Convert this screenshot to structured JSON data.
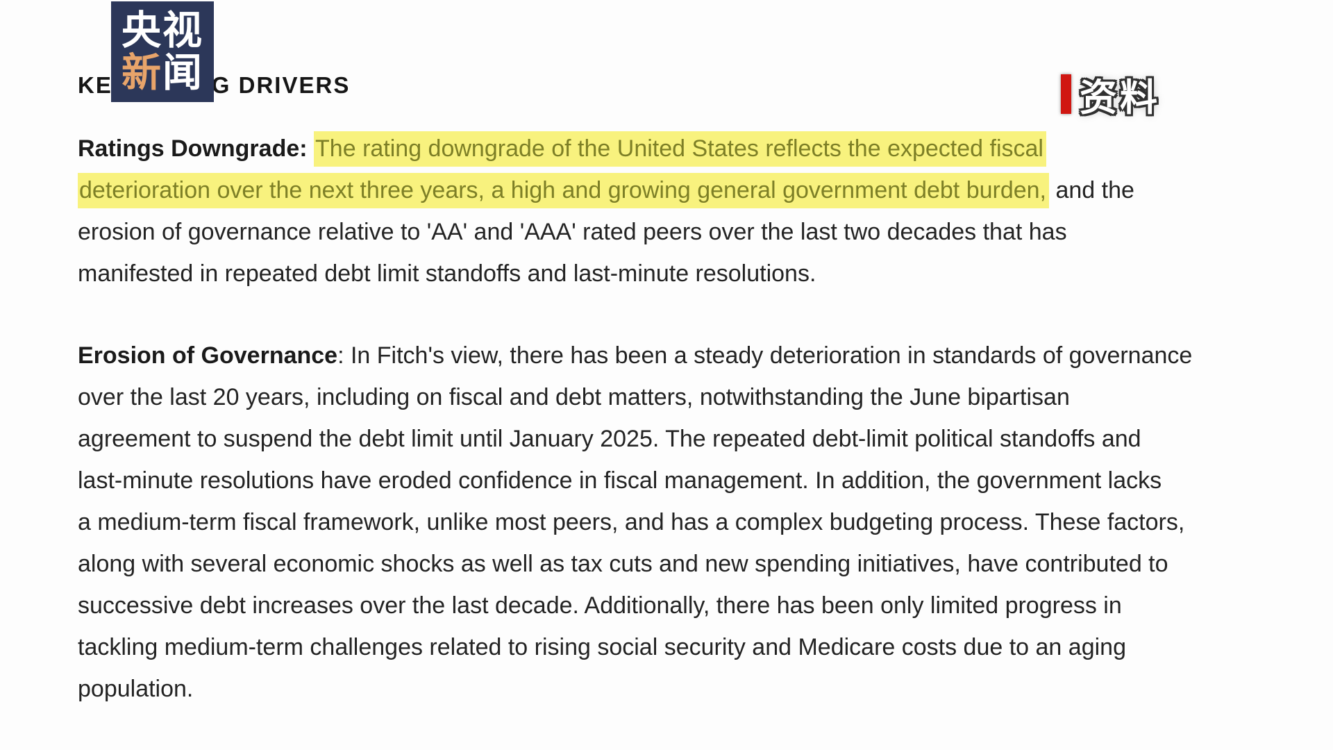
{
  "page": {
    "background_color": "#fdfdfd",
    "text_color": "#232323"
  },
  "watermarks": {
    "broadcaster_logo": {
      "row1": "央视",
      "row2_char1": "新",
      "row2_char2": "闻",
      "bg_color": "#2c3759",
      "accent_color": "#e8a46a"
    },
    "source_tag": {
      "label": "资料",
      "bar_color": "#d01712"
    }
  },
  "document": {
    "heading": "KEY RATING DRIVERS",
    "highlight_bg_color": "#f8f27e",
    "highlight_text_color": "#7d7f26",
    "paragraph1": {
      "lead_label": "Ratings Downgrade: ",
      "highlighted_text": "The rating downgrade of the United States reflects the expected fiscal\ndeterioration over the next three years, a high and growing general government debt burden,",
      "rest_text": " and the\nerosion of governance relative to 'AA' and 'AAA' rated peers over the last two decades that has\nmanifested in repeated debt limit standoffs and last-minute resolutions."
    },
    "paragraph2": {
      "lead_label": "Erosion of Governance",
      "rest_text": ": In Fitch's view, there has been a steady deterioration in standards of governance\nover the last 20 years, including on fiscal and debt matters, notwithstanding the June bipartisan\nagreement to suspend the debt limit until January 2025. The repeated debt-limit political standoffs and\nlast-minute resolutions have eroded confidence in fiscal management. In addition, the government lacks\na medium-term fiscal framework, unlike most peers, and has a complex budgeting process. These factors,\nalong with several economic shocks as well as tax cuts and new spending initiatives, have contributed to\nsuccessive debt increases over the last decade. Additionally, there has been only limited progress in\ntackling medium-term challenges related to rising social security and Medicare costs due to an aging\npopulation."
    }
  }
}
